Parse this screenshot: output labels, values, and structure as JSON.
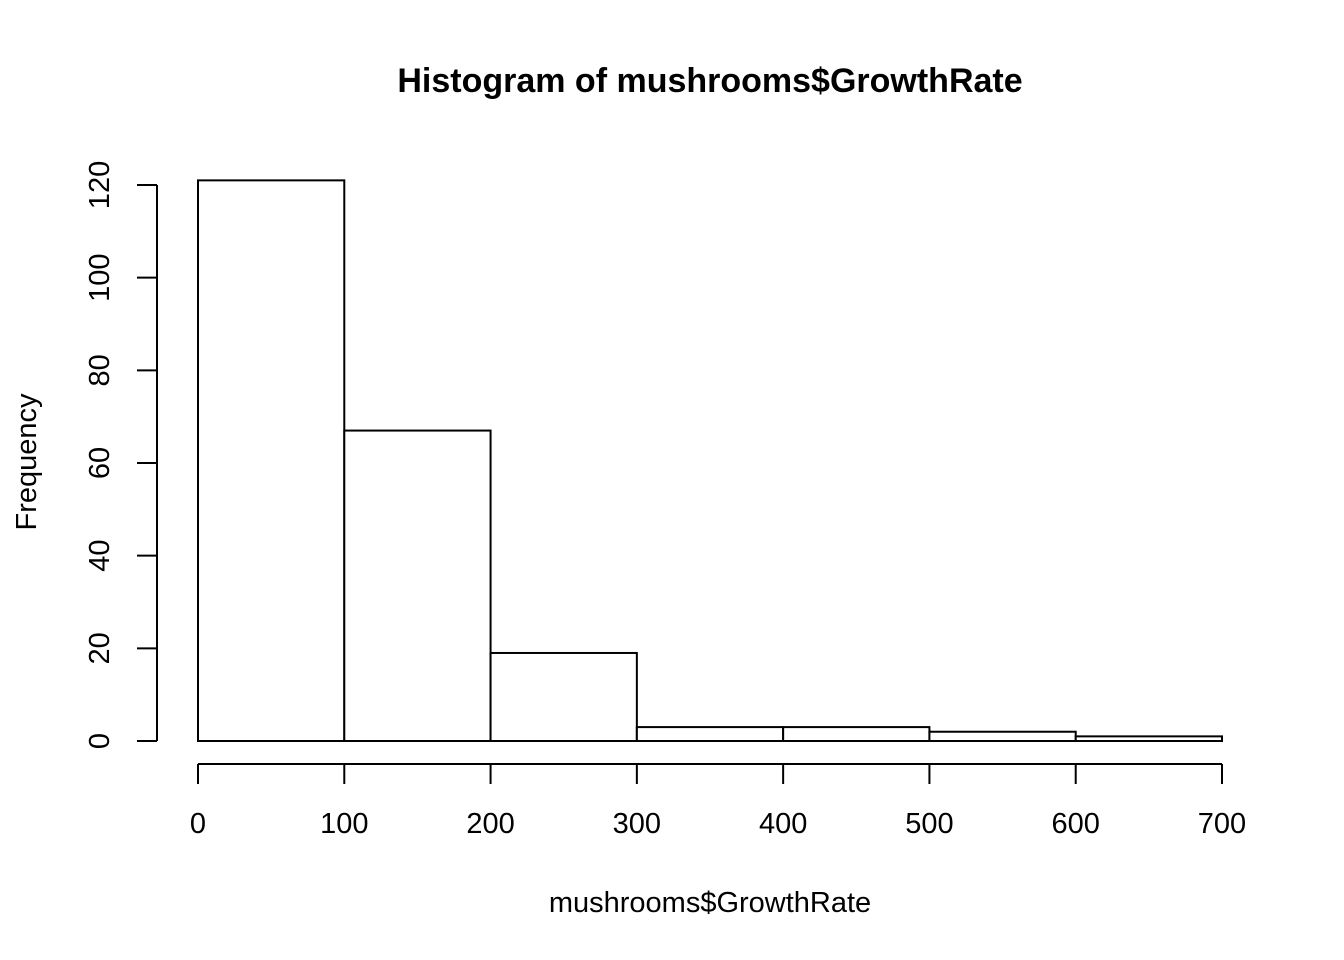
{
  "chart_data": {
    "type": "bar",
    "title": "Histogram of mushrooms$GrowthRate",
    "xlabel": "mushrooms$GrowthRate",
    "ylabel": "Frequency",
    "bins": [
      {
        "from": 0,
        "to": 100,
        "count": 121
      },
      {
        "from": 100,
        "to": 200,
        "count": 67
      },
      {
        "from": 200,
        "to": 300,
        "count": 19
      },
      {
        "from": 300,
        "to": 400,
        "count": 3
      },
      {
        "from": 400,
        "to": 500,
        "count": 3
      },
      {
        "from": 500,
        "to": 600,
        "count": 2
      },
      {
        "from": 600,
        "to": 700,
        "count": 1
      }
    ],
    "xlim": [
      0,
      700
    ],
    "ylim": [
      0,
      120
    ],
    "x_ticks": [
      "0",
      "100",
      "200",
      "300",
      "400",
      "500",
      "600",
      "700"
    ],
    "y_ticks": [
      "0",
      "20",
      "40",
      "60",
      "80",
      "100",
      "120"
    ],
    "grid": false,
    "colors": {
      "bar_fill": "#ffffff",
      "bar_stroke": "#000000"
    }
  }
}
